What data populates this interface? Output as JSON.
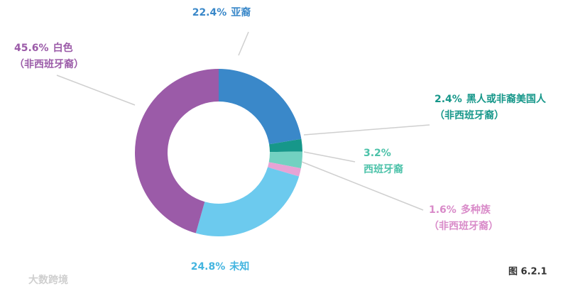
{
  "chart_data": {
    "type": "donut",
    "categories": [
      [
        "亚裔"
      ],
      [
        "黑人或非裔美国人",
        "（非西班牙裔）"
      ],
      [
        "西班牙裔"
      ],
      [
        "多种族",
        "（非西班牙裔）"
      ],
      [
        "未知"
      ],
      [
        "白色",
        "（非西班牙裔）"
      ]
    ],
    "values": [
      22.4,
      2.4,
      3.2,
      1.6,
      24.8,
      45.6
    ],
    "value_labels": [
      "22.4%",
      "2.4%",
      "3.2%",
      "1.6%",
      "24.8%",
      "45.6%"
    ],
    "colors": [
      "#3a88c9",
      "#16978a",
      "#72d1c1",
      "#e7a3d5",
      "#6ccaee",
      "#9b5ba8"
    ],
    "label_colors": [
      "#3a88c9",
      "#16978a",
      "#4cc2a9",
      "#d98bc9",
      "#44b5e0",
      "#9b5ba8"
    ],
    "figure_label": "图 6.2.1",
    "watermark": "大数跨境"
  }
}
